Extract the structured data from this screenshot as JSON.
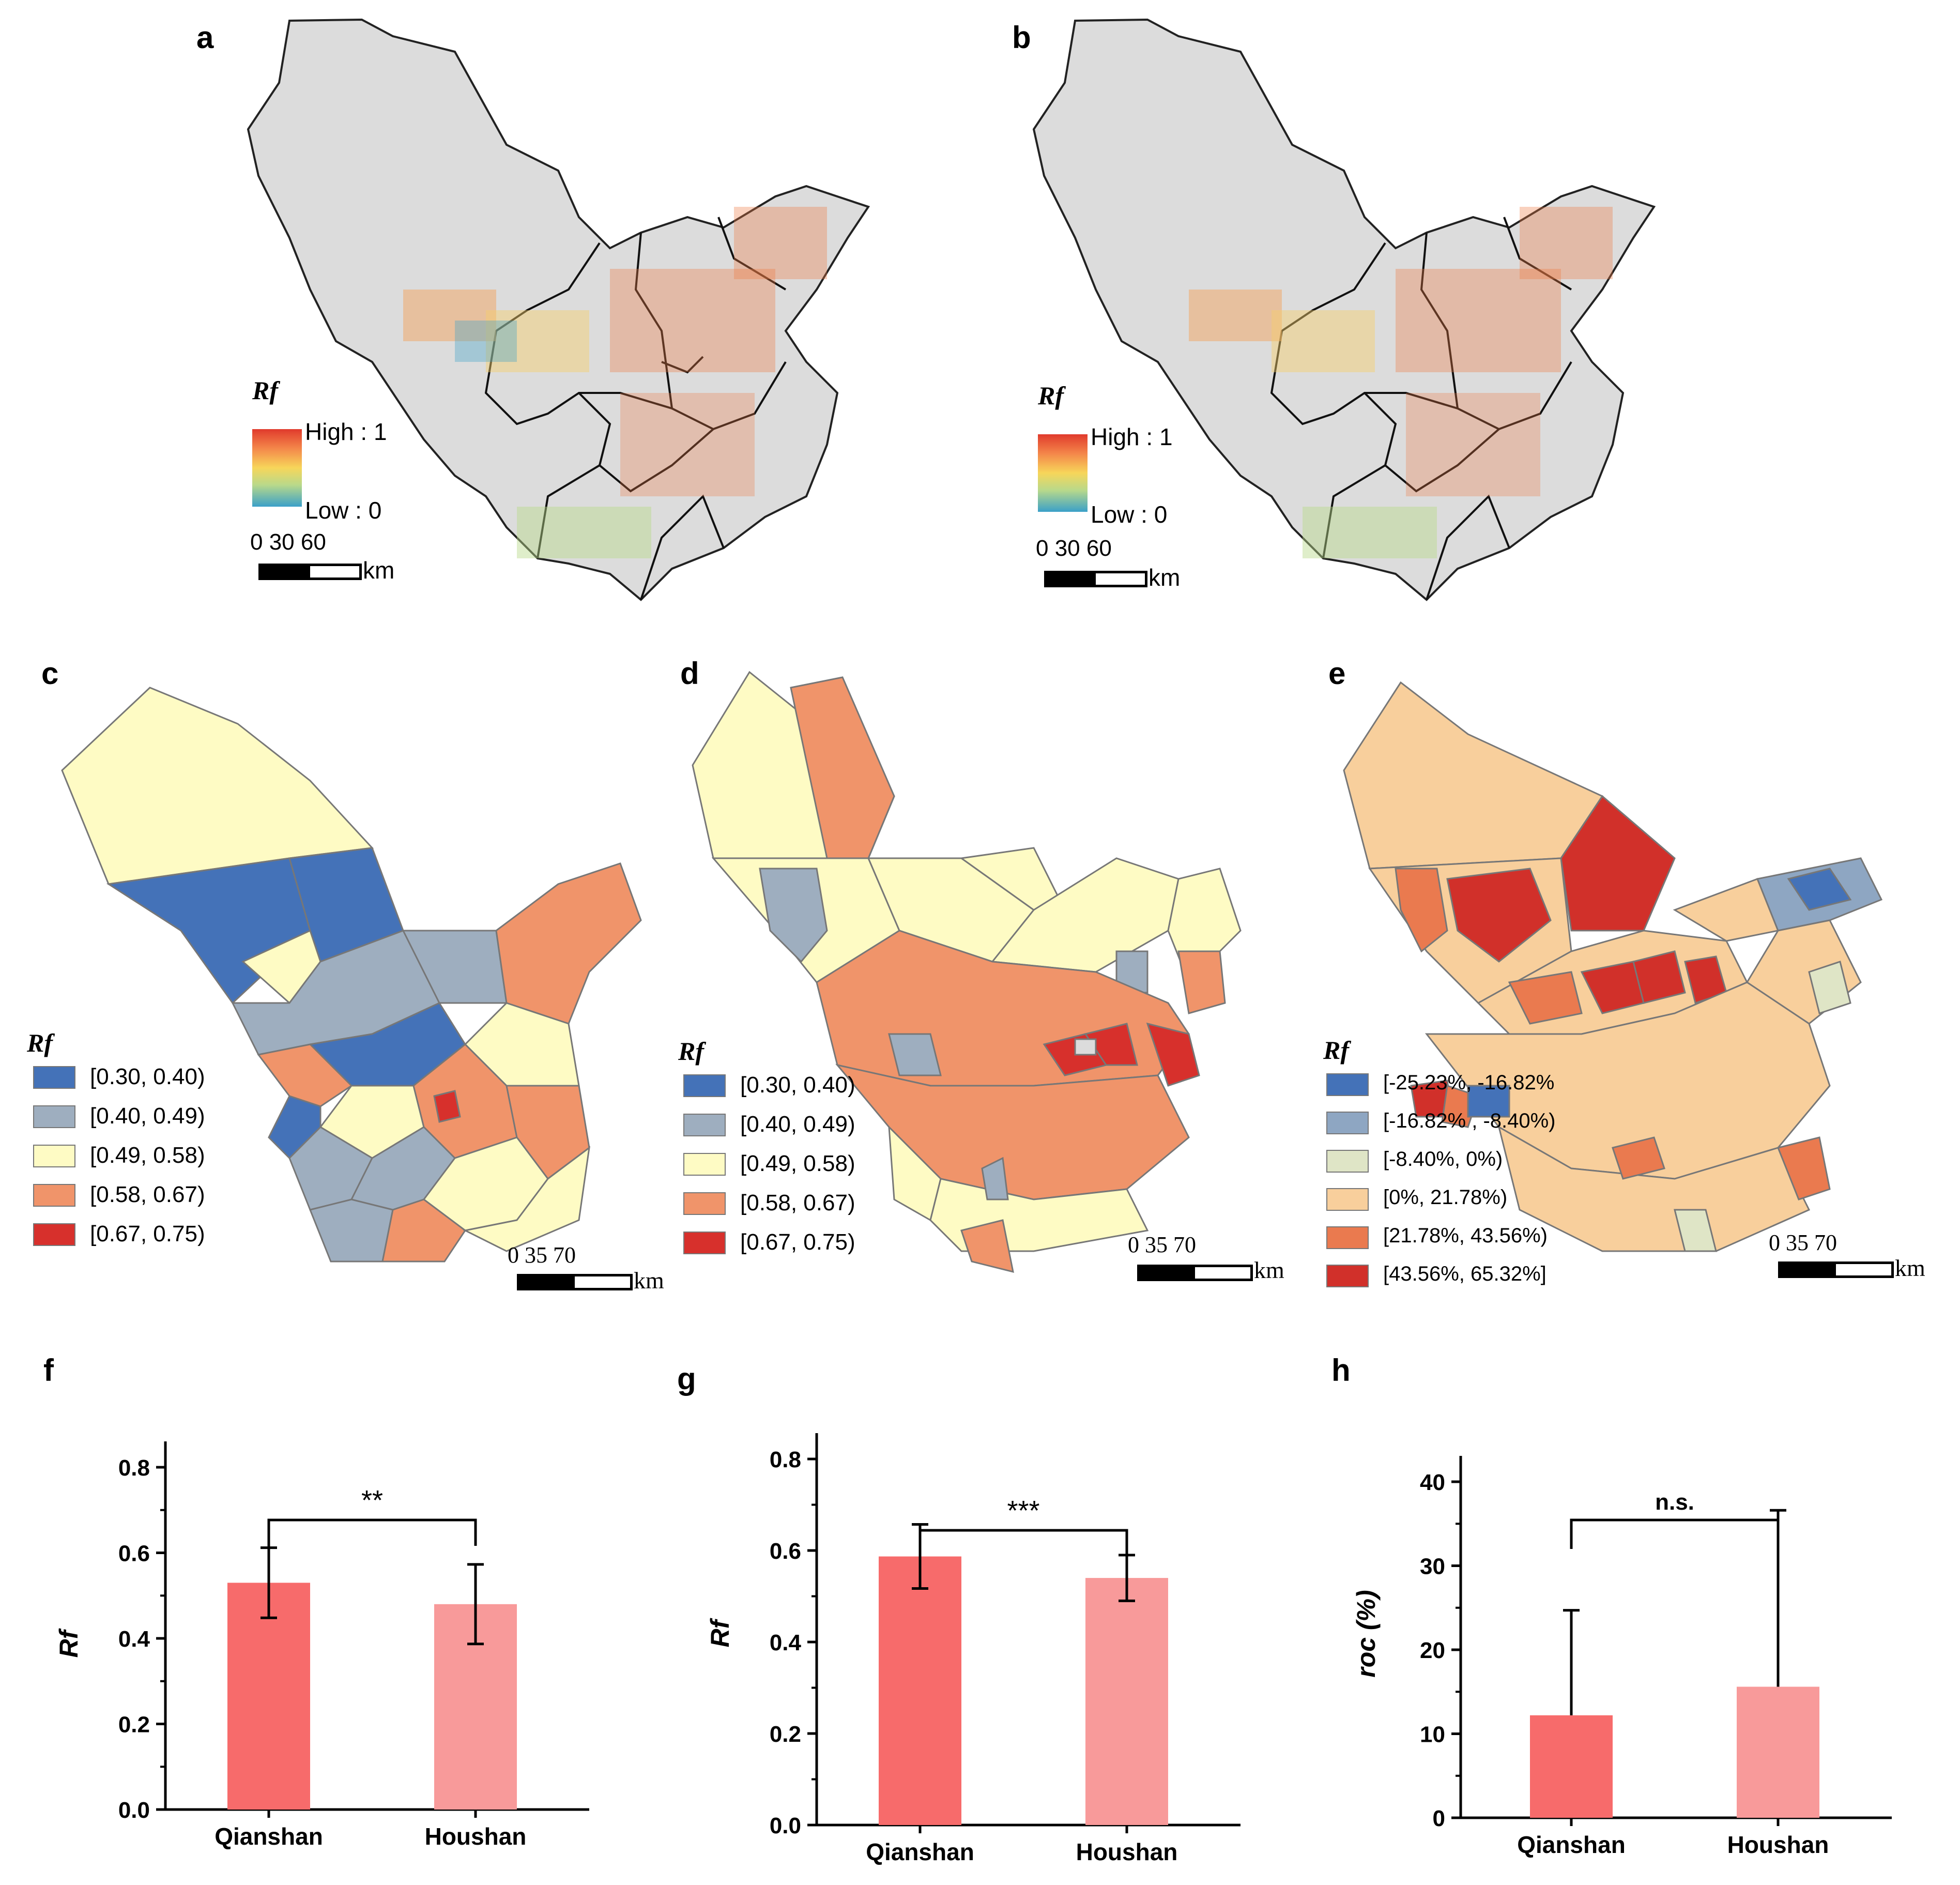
{
  "panels": {
    "a": {
      "label": "a"
    },
    "b": {
      "label": "b"
    },
    "c": {
      "label": "c"
    },
    "d": {
      "label": "d"
    },
    "e": {
      "label": "e"
    },
    "f": {
      "label": "f"
    },
    "g": {
      "label": "g"
    },
    "h": {
      "label": "h"
    }
  },
  "gradient_legend": {
    "title": "Rf",
    "high": "High : 1",
    "low": "Low : 0"
  },
  "scale_top": {
    "ticks": "0  30  60",
    "unit": "km"
  },
  "scale_bottom": {
    "ticks": "0    35    70",
    "unit": "km"
  },
  "class_legend_rf": {
    "title": "Rf",
    "items": [
      {
        "label": "[0.30, 0.40)",
        "color": "#4472b8"
      },
      {
        "label": "[0.40, 0.49)",
        "color": "#9eaebf"
      },
      {
        "label": "[0.49, 0.58)",
        "color": "#fefbc4"
      },
      {
        "label": "[0.58, 0.67)",
        "color": "#f0946a"
      },
      {
        "label": "[0.67, 0.75)",
        "color": "#d7302c"
      }
    ]
  },
  "class_legend_change": {
    "title": "Rf",
    "items": [
      {
        "label": "[-25.23%, -16.82%",
        "color": "#4472b8"
      },
      {
        "label": "[-16.82% , -8.40%)",
        "color": "#8ea6c2"
      },
      {
        "label": "[-8.40%, 0%)",
        "color": "#dfe5c6"
      },
      {
        "label": "[0%, 21.78%)",
        "color": "#f8cf9c"
      },
      {
        "label": "[21.78%, 43.56%)",
        "color": "#ea7a4f"
      },
      {
        "label": "[43.56%, 65.32%]",
        "color": "#d1302a"
      }
    ]
  },
  "colors": {
    "land": "#dcdcdc",
    "qianshan": "#f76b6b",
    "houshan": "#f89a9a"
  },
  "chart_data": [
    {
      "id": "f",
      "type": "bar",
      "categories": [
        "Qianshan",
        "Houshan"
      ],
      "values": [
        0.53,
        0.48
      ],
      "errors": [
        0.082,
        0.093
      ],
      "ylabel": "Rf",
      "ylim": [
        0,
        0.8
      ],
      "yticks": [
        "0.0",
        "0.2",
        "0.4",
        "0.6",
        "0.8"
      ],
      "significance": "**"
    },
    {
      "id": "g",
      "type": "bar",
      "categories": [
        "Qianshan",
        "Houshan"
      ],
      "values": [
        0.587,
        0.54
      ],
      "errors": [
        0.07,
        0.05
      ],
      "ylabel": "Rf",
      "ylim": [
        0,
        0.8
      ],
      "yticks": [
        "0.0",
        "0.2",
        "0.4",
        "0.6",
        "0.8"
      ],
      "significance": "***"
    },
    {
      "id": "h",
      "type": "bar",
      "categories": [
        "Qianshan",
        "Houshan"
      ],
      "values": [
        12.2,
        15.6
      ],
      "errors": [
        12.5,
        21.0
      ],
      "ylabel": "roc (%)",
      "ylim": [
        0,
        45
      ],
      "yticks": [
        "0",
        "10",
        "20",
        "30",
        "40"
      ],
      "significance": "n.s."
    }
  ]
}
